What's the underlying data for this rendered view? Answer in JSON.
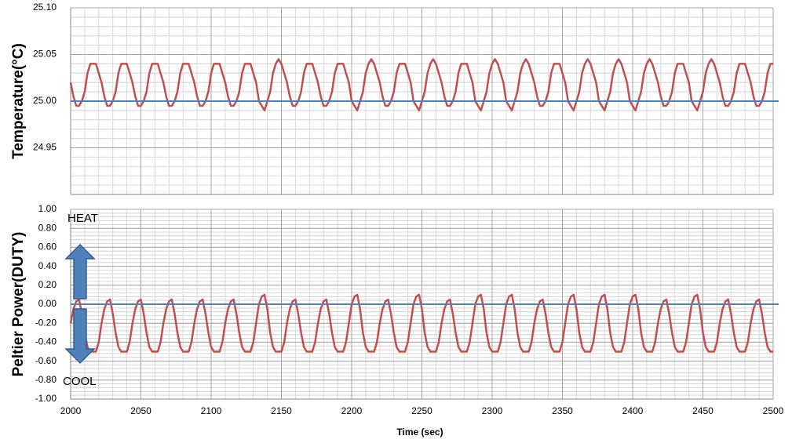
{
  "chart_data": [
    {
      "type": "line",
      "y_label": "Temperature(°C)",
      "color": "#c0504d",
      "xlim": [
        2000,
        2500
      ],
      "ylim": [
        24.9,
        25.1
      ],
      "yticks": [
        24.95,
        {
          "value": 25.0,
          "label": "25.00"
        },
        25.05,
        {
          "value": 25.1,
          "label": "25.10"
        }
      ],
      "grid": true,
      "minor_grid": true,
      "hline": {
        "value": 25.0,
        "color": "#4f81bd"
      },
      "x": [
        2000,
        2002,
        2004,
        2006,
        2008,
        2010,
        2012,
        2014,
        2016,
        2018,
        2020,
        2022,
        2024,
        2026,
        2028,
        2030,
        2032,
        2034,
        2036,
        2038,
        2040,
        2042,
        2044,
        2046,
        2048,
        2050,
        2052,
        2054,
        2056,
        2058,
        2060,
        2062,
        2064,
        2066,
        2068,
        2070,
        2072,
        2074,
        2076,
        2078,
        2080,
        2082,
        2084,
        2086,
        2088,
        2090,
        2092,
        2094,
        2096,
        2098,
        2100,
        2102,
        2104,
        2106,
        2108,
        2110,
        2112,
        2114,
        2116,
        2118,
        2120,
        2122,
        2124,
        2126,
        2128,
        2130,
        2132,
        2134,
        2136,
        2138,
        2140,
        2142,
        2144,
        2146,
        2148,
        2150,
        2152,
        2154,
        2156,
        2158,
        2160,
        2162,
        2164,
        2166,
        2168,
        2170,
        2172,
        2174,
        2176,
        2178,
        2180,
        2182,
        2184,
        2186,
        2188,
        2190,
        2192,
        2194,
        2196,
        2198,
        2200,
        2202,
        2204,
        2206,
        2208,
        2210,
        2212,
        2214,
        2216,
        2218,
        2220,
        2222,
        2224,
        2226,
        2228,
        2230,
        2232,
        2234,
        2236,
        2238,
        2240,
        2242,
        2244,
        2246,
        2248,
        2250,
        2252,
        2254,
        2256,
        2258,
        2260,
        2262,
        2264,
        2266,
        2268,
        2270,
        2272,
        2274,
        2276,
        2278,
        2280,
        2282,
        2284,
        2286,
        2288,
        2290,
        2292,
        2294,
        2296,
        2298,
        2300,
        2302,
        2304,
        2306,
        2308,
        2310,
        2312,
        2314,
        2316,
        2318,
        2320,
        2322,
        2324,
        2326,
        2328,
        2330,
        2332,
        2334,
        2336,
        2338,
        2340,
        2342,
        2344,
        2346,
        2348,
        2350,
        2352,
        2354,
        2356,
        2358,
        2360,
        2362,
        2364,
        2366,
        2368,
        2370,
        2372,
        2374,
        2376,
        2378,
        2380,
        2382,
        2384,
        2386,
        2388,
        2390,
        2392,
        2394,
        2396,
        2398,
        2400,
        2402,
        2404,
        2406,
        2408,
        2410,
        2412,
        2414,
        2416,
        2418,
        2420,
        2422,
        2424,
        2426,
        2428,
        2430,
        2432,
        2434,
        2436,
        2438,
        2440,
        2442,
        2444,
        2446,
        2448,
        2450,
        2452,
        2454,
        2456,
        2458,
        2460,
        2462,
        2464,
        2466,
        2468,
        2470,
        2472,
        2474,
        2476,
        2478,
        2480,
        2482,
        2484,
        2486,
        2488,
        2490,
        2492,
        2494,
        2496,
        2498,
        2500
      ],
      "values": [
        25.02,
        25.005,
        24.995,
        24.995,
        25.0,
        25.01,
        25.03,
        25.04,
        25.04,
        25.04,
        25.03,
        25.02,
        25.005,
        24.995,
        24.995,
        25.0,
        25.01,
        25.03,
        25.04,
        25.04,
        25.04,
        25.03,
        25.02,
        25.005,
        24.995,
        24.995,
        25.0,
        25.01,
        25.03,
        25.04,
        25.04,
        25.04,
        25.03,
        25.02,
        25.005,
        24.995,
        24.995,
        25.0,
        25.01,
        25.03,
        25.04,
        25.04,
        25.04,
        25.03,
        25.02,
        25.005,
        24.995,
        24.995,
        25.0,
        25.01,
        25.03,
        25.04,
        25.04,
        25.04,
        25.03,
        25.02,
        25.005,
        24.995,
        24.995,
        25.0,
        25.01,
        25.03,
        25.04,
        25.04,
        25.04,
        25.03,
        25.02,
        25.0,
        24.995,
        24.99,
        25.0,
        25.01,
        25.03,
        25.04,
        25.045,
        25.04,
        25.03,
        25.02,
        25.005,
        24.995,
        24.995,
        25.0,
        25.01,
        25.03,
        25.04,
        25.04,
        25.04,
        25.03,
        25.02,
        25.005,
        24.995,
        24.995,
        25.0,
        25.01,
        25.03,
        25.04,
        25.04,
        25.04,
        25.03,
        25.02,
        25.0,
        24.995,
        24.99,
        25.0,
        25.01,
        25.03,
        25.04,
        25.045,
        25.04,
        25.03,
        25.02,
        25.005,
        24.995,
        24.995,
        25.0,
        25.01,
        25.03,
        25.04,
        25.04,
        25.04,
        25.03,
        25.02,
        25.0,
        24.995,
        24.99,
        25.0,
        25.01,
        25.03,
        25.04,
        25.045,
        25.04,
        25.03,
        25.02,
        25.005,
        24.995,
        24.995,
        25.0,
        25.01,
        25.03,
        25.04,
        25.04,
        25.04,
        25.03,
        25.02,
        25.0,
        24.995,
        24.99,
        25.0,
        25.01,
        25.03,
        25.04,
        25.045,
        25.04,
        25.03,
        25.02,
        25.0,
        24.995,
        24.99,
        25.0,
        25.01,
        25.03,
        25.04,
        25.045,
        25.04,
        25.03,
        25.02,
        25.005,
        24.995,
        24.995,
        25.0,
        25.01,
        25.03,
        25.04,
        25.04,
        25.04,
        25.03,
        25.02,
        25.0,
        24.995,
        24.99,
        25.0,
        25.01,
        25.03,
        25.04,
        25.045,
        25.04,
        25.03,
        25.02,
        25.0,
        24.995,
        24.99,
        25.0,
        25.01,
        25.03,
        25.04,
        25.045,
        25.04,
        25.03,
        25.02,
        25.0,
        24.995,
        24.99,
        25.0,
        25.01,
        25.03,
        25.04,
        25.045,
        25.04,
        25.03,
        25.02,
        25.005,
        24.995,
        24.995,
        25.0,
        25.01,
        25.03,
        25.04,
        25.04,
        25.04,
        25.03,
        25.02,
        25.0,
        24.995,
        24.99,
        25.0,
        25.01,
        25.03,
        25.04,
        25.045,
        25.04,
        25.03,
        25.02,
        25.005,
        24.995,
        24.995,
        25.0,
        25.01,
        25.03,
        25.04,
        25.04,
        25.04,
        25.03,
        25.02,
        25.005,
        24.995,
        24.995,
        25.0,
        25.01,
        25.03,
        25.04,
        25.04
      ]
    },
    {
      "type": "line",
      "y_label": "Peltier Power(DUTY)",
      "x_label": "Time (sec)",
      "color": "#c0504d",
      "xlim": [
        2000,
        2500
      ],
      "ylim": [
        -1,
        1
      ],
      "xticks": [
        2000,
        2050,
        2100,
        2150,
        2200,
        2250,
        2300,
        2350,
        2400,
        2450,
        2500
      ],
      "yticks": [
        {
          "value": -1,
          "label": "-1.00"
        },
        {
          "value": -0.8,
          "label": "-0.80"
        },
        {
          "value": -0.6,
          "label": "-0.60"
        },
        {
          "value": -0.4,
          "label": "-0.40"
        },
        {
          "value": -0.2,
          "label": "-0.20"
        },
        {
          "value": 0,
          "label": "0.00"
        },
        {
          "value": 0.2,
          "label": "0.20"
        },
        {
          "value": 0.4,
          "label": "0.40"
        },
        {
          "value": 0.6,
          "label": "0.60"
        },
        {
          "value": 0.8,
          "label": "0.80"
        },
        {
          "value": 1,
          "label": "1.00"
        }
      ],
      "grid": true,
      "minor_grid": true,
      "hline": {
        "value": 0,
        "color": "#4f81bd"
      },
      "annotations": [
        "HEAT",
        "COOL"
      ],
      "x": [
        2000,
        2002,
        2004,
        2006,
        2008,
        2010,
        2012,
        2014,
        2016,
        2018,
        2020,
        2022,
        2024,
        2026,
        2028,
        2030,
        2032,
        2034,
        2036,
        2038,
        2040,
        2042,
        2044,
        2046,
        2048,
        2050,
        2052,
        2054,
        2056,
        2058,
        2060,
        2062,
        2064,
        2066,
        2068,
        2070,
        2072,
        2074,
        2076,
        2078,
        2080,
        2082,
        2084,
        2086,
        2088,
        2090,
        2092,
        2094,
        2096,
        2098,
        2100,
        2102,
        2104,
        2106,
        2108,
        2110,
        2112,
        2114,
        2116,
        2118,
        2120,
        2122,
        2124,
        2126,
        2128,
        2130,
        2132,
        2134,
        2136,
        2138,
        2140,
        2142,
        2144,
        2146,
        2148,
        2150,
        2152,
        2154,
        2156,
        2158,
        2160,
        2162,
        2164,
        2166,
        2168,
        2170,
        2172,
        2174,
        2176,
        2178,
        2180,
        2182,
        2184,
        2186,
        2188,
        2190,
        2192,
        2194,
        2196,
        2198,
        2200,
        2202,
        2204,
        2206,
        2208,
        2210,
        2212,
        2214,
        2216,
        2218,
        2220,
        2222,
        2224,
        2226,
        2228,
        2230,
        2232,
        2234,
        2236,
        2238,
        2240,
        2242,
        2244,
        2246,
        2248,
        2250,
        2252,
        2254,
        2256,
        2258,
        2260,
        2262,
        2264,
        2266,
        2268,
        2270,
        2272,
        2274,
        2276,
        2278,
        2280,
        2282,
        2284,
        2286,
        2288,
        2290,
        2292,
        2294,
        2296,
        2298,
        2300,
        2302,
        2304,
        2306,
        2308,
        2310,
        2312,
        2314,
        2316,
        2318,
        2320,
        2322,
        2324,
        2326,
        2328,
        2330,
        2332,
        2334,
        2336,
        2338,
        2340,
        2342,
        2344,
        2346,
        2348,
        2350,
        2352,
        2354,
        2356,
        2358,
        2360,
        2362,
        2364,
        2366,
        2368,
        2370,
        2372,
        2374,
        2376,
        2378,
        2380,
        2382,
        2384,
        2386,
        2388,
        2390,
        2392,
        2394,
        2396,
        2398,
        2400,
        2402,
        2404,
        2406,
        2408,
        2410,
        2412,
        2414,
        2416,
        2418,
        2420,
        2422,
        2424,
        2426,
        2428,
        2430,
        2432,
        2434,
        2436,
        2438,
        2440,
        2442,
        2444,
        2446,
        2448,
        2450,
        2452,
        2454,
        2456,
        2458,
        2460,
        2462,
        2464,
        2466,
        2468,
        2470,
        2472,
        2474,
        2476,
        2478,
        2480,
        2482,
        2484,
        2486,
        2488,
        2490,
        2492,
        2494,
        2496,
        2498,
        2500
      ],
      "values": [
        -0.2,
        -0.05,
        0.03,
        0.05,
        -0.1,
        -0.3,
        -0.45,
        -0.5,
        -0.5,
        -0.5,
        -0.4,
        -0.2,
        -0.05,
        0.03,
        0.05,
        -0.1,
        -0.3,
        -0.45,
        -0.5,
        -0.5,
        -0.5,
        -0.4,
        -0.2,
        -0.05,
        0.03,
        0.05,
        -0.1,
        -0.3,
        -0.45,
        -0.5,
        -0.5,
        -0.5,
        -0.4,
        -0.2,
        -0.05,
        0.03,
        0.05,
        -0.1,
        -0.3,
        -0.45,
        -0.5,
        -0.5,
        -0.5,
        -0.4,
        -0.2,
        -0.05,
        0.03,
        0.05,
        -0.1,
        -0.3,
        -0.45,
        -0.5,
        -0.5,
        -0.5,
        -0.4,
        -0.2,
        -0.05,
        0.03,
        0.05,
        -0.1,
        -0.3,
        -0.45,
        -0.5,
        -0.5,
        -0.5,
        -0.4,
        -0.2,
        0.0,
        0.08,
        0.1,
        -0.05,
        -0.3,
        -0.45,
        -0.5,
        -0.5,
        -0.5,
        -0.4,
        -0.2,
        -0.05,
        0.03,
        0.05,
        -0.1,
        -0.3,
        -0.45,
        -0.5,
        -0.5,
        -0.5,
        -0.4,
        -0.2,
        -0.05,
        0.03,
        0.05,
        -0.1,
        -0.3,
        -0.45,
        -0.5,
        -0.5,
        -0.5,
        -0.4,
        -0.2,
        0.0,
        0.08,
        0.1,
        -0.05,
        -0.3,
        -0.45,
        -0.5,
        -0.5,
        -0.5,
        -0.4,
        -0.2,
        -0.05,
        0.03,
        0.05,
        -0.1,
        -0.3,
        -0.45,
        -0.5,
        -0.5,
        -0.5,
        -0.4,
        -0.2,
        0.0,
        0.08,
        0.1,
        -0.05,
        -0.3,
        -0.45,
        -0.5,
        -0.5,
        -0.5,
        -0.4,
        -0.2,
        -0.05,
        0.03,
        0.05,
        -0.1,
        -0.3,
        -0.45,
        -0.5,
        -0.5,
        -0.5,
        -0.4,
        -0.2,
        0.0,
        0.08,
        0.1,
        -0.05,
        -0.3,
        -0.45,
        -0.5,
        -0.5,
        -0.5,
        -0.4,
        -0.2,
        0.0,
        0.08,
        0.1,
        -0.05,
        -0.3,
        -0.45,
        -0.5,
        -0.5,
        -0.5,
        -0.4,
        -0.2,
        -0.05,
        0.03,
        0.05,
        -0.1,
        -0.3,
        -0.45,
        -0.5,
        -0.5,
        -0.5,
        -0.4,
        -0.2,
        0.0,
        0.08,
        0.1,
        -0.05,
        -0.3,
        -0.45,
        -0.5,
        -0.5,
        -0.5,
        -0.4,
        -0.2,
        0.0,
        0.08,
        0.1,
        -0.05,
        -0.3,
        -0.45,
        -0.5,
        -0.5,
        -0.5,
        -0.4,
        -0.2,
        0.0,
        0.08,
        0.1,
        -0.05,
        -0.3,
        -0.45,
        -0.5,
        -0.5,
        -0.5,
        -0.4,
        -0.2,
        -0.05,
        0.03,
        0.05,
        -0.1,
        -0.3,
        -0.45,
        -0.5,
        -0.5,
        -0.5,
        -0.4,
        -0.2,
        0.0,
        0.08,
        0.1,
        -0.05,
        -0.3,
        -0.45,
        -0.5,
        -0.5,
        -0.5,
        -0.4,
        -0.2,
        -0.05,
        0.03,
        0.05,
        -0.1,
        -0.3,
        -0.45,
        -0.5,
        -0.5,
        -0.5,
        -0.4,
        -0.2,
        -0.05,
        0.03,
        0.05,
        -0.1,
        -0.3,
        -0.45,
        -0.5,
        -0.5
      ]
    }
  ]
}
